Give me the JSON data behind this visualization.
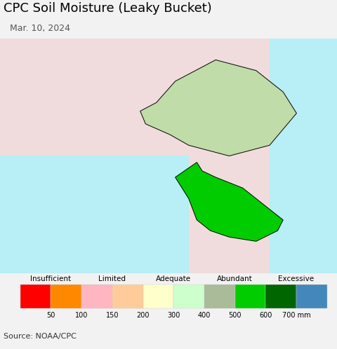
{
  "title": "CPC Soil Moisture (Leaky Bucket)",
  "subtitle": "Mar. 10, 2024",
  "source": "Source: NOAA/CPC",
  "colorbar_colors": [
    "#FF0000",
    "#FF8800",
    "#FFB6C1",
    "#FFCC99",
    "#FFFFCC",
    "#CCFFCC",
    "#AABB99",
    "#00CC00",
    "#006600",
    "#4488BB"
  ],
  "colorbar_labels": [
    "50",
    "100",
    "150",
    "200",
    "300",
    "400",
    "500",
    "600",
    "700 mm"
  ],
  "category_labels": [
    "Insufficient",
    "Limited",
    "Adequate",
    "Abundant",
    "Excessive"
  ],
  "ocean_color": "#B8EEF5",
  "land_color_china": "#F0DCDC",
  "land_color_japan": "#F0DCDC",
  "land_color_russia": "#F0DCDC",
  "nk_north_color": "#C8E8B0",
  "nk_west_color": "#A8C890",
  "nk_central_color": "#C0DCA8",
  "sk_main_color": "#00CC00",
  "sk_center_color": "#AABB99",
  "background_color": "#F2F2F2",
  "source_bg": "#E8E8E8",
  "title_fontsize": 13,
  "subtitle_fontsize": 9,
  "legend_fontsize": 8,
  "source_fontsize": 8,
  "fig_width": 4.8,
  "fig_height": 4.98,
  "dpi": 100
}
